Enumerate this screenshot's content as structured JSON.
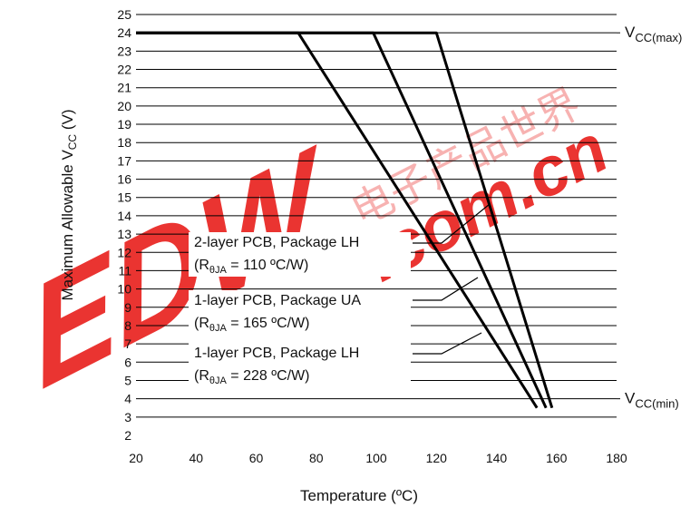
{
  "chart_data": {
    "type": "line",
    "title": "",
    "xlabel": "Temperature (ºC)",
    "ylabel_main": "Maximum Allowable V",
    "ylabel_sub": "CC",
    "ylabel_tail": " (V)",
    "xlim": [
      20,
      180
    ],
    "ylim": [
      2,
      25
    ],
    "x_ticks": [
      "20",
      "40",
      "60",
      "80",
      "100",
      "120",
      "140",
      "160",
      "180"
    ],
    "y_ticks": [
      "2",
      "3",
      "4",
      "5",
      "6",
      "7",
      "8",
      "9",
      "10",
      "11",
      "12",
      "13",
      "14",
      "15",
      "16",
      "17",
      "18",
      "19",
      "20",
      "21",
      "22",
      "23",
      "24",
      "25"
    ],
    "grid": true,
    "reference_lines": [
      {
        "main": "V",
        "sub": "CC(max)",
        "y": 24
      },
      {
        "main": "V",
        "sub": "CC(min)",
        "y": 4
      }
    ],
    "series": [
      {
        "label_line1": "2-layer PCB, Package LH",
        "label_pre": "(R",
        "label_sub": "θJA",
        "label_post": " = 110 ºC/W)",
        "points": [
          [
            20,
            24
          ],
          [
            120,
            24
          ],
          [
            158.5,
            3.5
          ]
        ]
      },
      {
        "label_line1": "1-layer PCB, Package UA",
        "label_pre": "(R",
        "label_sub": "θJA",
        "label_post": " = 165 ºC/W)",
        "points": [
          [
            20,
            24
          ],
          [
            99,
            24
          ],
          [
            156.5,
            3.5
          ]
        ]
      },
      {
        "label_line1": "1-layer PCB, Package LH",
        "label_pre": "(R",
        "label_sub": "θJA",
        "label_post": " = 228 ºC/W)",
        "points": [
          [
            20,
            24
          ],
          [
            74,
            24
          ],
          [
            153.5,
            3.5
          ]
        ]
      }
    ],
    "watermark": {
      "text_logo": "EDW",
      "text_cn": "电子产品世界",
      "text_url": ".com.cn",
      "color": "#e8231f"
    }
  }
}
